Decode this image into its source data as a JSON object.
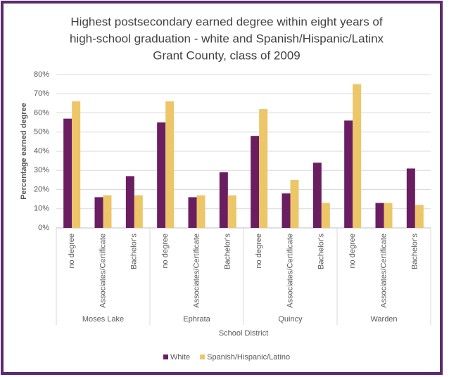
{
  "chart_data": {
    "type": "bar",
    "title": [
      "Highest postsecondary earned degree within eight years of",
      "high-school graduation - white and Spanish/Hispanic/Latinx",
      "Grant County, class of 2009"
    ],
    "y_label": "Percentage earned degree",
    "x_label": "School District",
    "categories": [
      "no degree",
      "Associates/Certificate",
      "Bachelor's",
      "no degree",
      "Associates/Certificate",
      "Bachelor's",
      "no degree",
      "Associates/Certificate",
      "Bachelor's",
      "no degree",
      "Associates/Certificate",
      "Bachelor's"
    ],
    "groups": [
      "Moses Lake",
      "Ephrata",
      "Quincy",
      "Warden"
    ],
    "series": [
      {
        "name": "White",
        "color": "#6b1d62",
        "values": [
          57,
          16,
          27,
          55,
          16,
          29,
          48,
          18,
          34,
          56,
          13,
          31
        ]
      },
      {
        "name": "Spanish/Hispanic/Latino",
        "color": "#ecc668",
        "values": [
          66,
          17,
          17,
          66,
          17,
          17,
          62,
          25,
          13,
          75,
          13,
          12
        ]
      }
    ],
    "ylim": [
      0,
      80
    ],
    "yticks": [
      {
        "value": 0,
        "label": "0%"
      },
      {
        "value": 10,
        "label": "10%"
      },
      {
        "value": 20,
        "label": "20%"
      },
      {
        "value": 30,
        "label": "30%"
      },
      {
        "value": 40,
        "label": "40%"
      },
      {
        "value": 50,
        "label": "50%"
      },
      {
        "value": 60,
        "label": "60%"
      },
      {
        "value": 70,
        "label": "70%"
      },
      {
        "value": 80,
        "label": "80%"
      }
    ],
    "grid": true,
    "legend": "bottom"
  }
}
